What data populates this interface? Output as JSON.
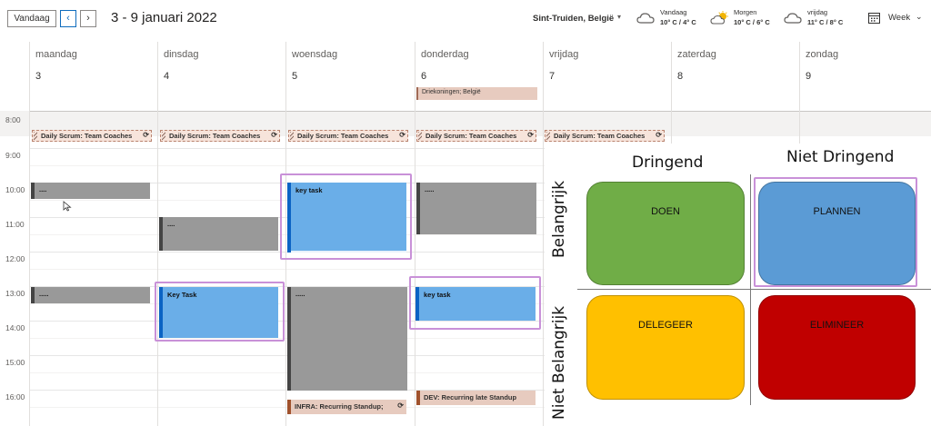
{
  "toolbar": {
    "today_label": "Vandaag",
    "prev_icon": "chevron-left-icon",
    "next_icon": "chevron-right-icon",
    "date_range": "3 - 9 januari 2022",
    "location": "Sint-Truiden, België",
    "weather": [
      {
        "label": "Vandaag",
        "temp": "10° C / 4° C",
        "icon": "cloud-icon"
      },
      {
        "label": "Morgen",
        "temp": "10° C / 6° C",
        "icon": "partly-sunny-icon"
      },
      {
        "label": "vrijdag",
        "temp": "11° C / 8° C",
        "icon": "cloud-icon"
      }
    ],
    "view_label": "Week"
  },
  "days": [
    {
      "name": "maandag",
      "num": "3"
    },
    {
      "name": "dinsdag",
      "num": "4"
    },
    {
      "name": "woensdag",
      "num": "5"
    },
    {
      "name": "donderdag",
      "num": "6"
    },
    {
      "name": "vrijdag",
      "num": "7"
    },
    {
      "name": "zaterdag",
      "num": "8"
    },
    {
      "name": "zondag",
      "num": "9"
    }
  ],
  "hours": [
    "8:00",
    "9:00",
    "10:00",
    "11:00",
    "12:00",
    "13:00",
    "14:00",
    "15:00",
    "16:00"
  ],
  "events": {
    "holiday": "Driekoningen; België",
    "scrum": "Daily Scrum: Team Coaches",
    "gray_dots": ".....",
    "gray_dots_short": "....",
    "key_task_lower": "key task",
    "key_task_upper": "Key Task",
    "infra": "INFRA: Recurring  Standup;",
    "dev": "DEV: Recurring late Standup"
  },
  "matrix": {
    "col_urgent": "Dringend",
    "col_not_urgent": "Niet Dringend",
    "row_important": "Belangrijk",
    "row_not_important": "Niet Belangrijk",
    "q1": "DOEN",
    "q2": "PLANNEN",
    "q3": "DELEGEER",
    "q4": "ELIMINEER",
    "colors": {
      "q1": "#70ad47",
      "q2": "#5b9bd5",
      "q3": "#ffc000",
      "q4": "#c00000"
    }
  },
  "colors": {
    "accent": "#0f6cbd",
    "highlight": "#c991d8"
  }
}
